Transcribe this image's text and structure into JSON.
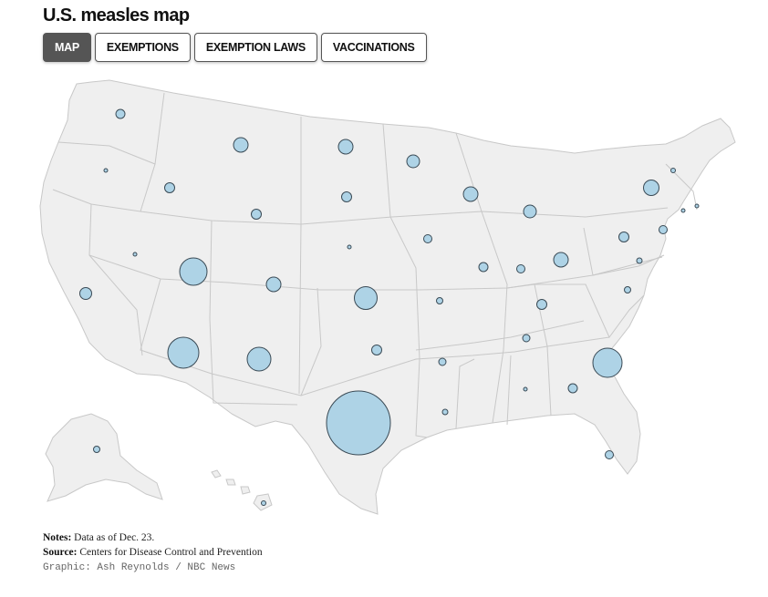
{
  "header": {
    "title": "U.S. measles map"
  },
  "tabs": [
    {
      "label": "MAP",
      "active": true
    },
    {
      "label": "EXEMPTIONS",
      "active": false
    },
    {
      "label": "EXEMPTION LAWS",
      "active": false
    },
    {
      "label": "VACCINATIONS",
      "active": false
    }
  ],
  "map": {
    "land_color": "#efefef",
    "border_color": "#c8c8c8",
    "bubble_fill": "#aed3e6",
    "bubble_stroke": "#3a4a55"
  },
  "footer": {
    "notes_label": "Notes:",
    "notes_text": "Data as of Dec. 23.",
    "source_label": "Source:",
    "source_text": "Centers for Disease Control and Prevention",
    "credit": "Graphic: Ash Reynolds / NBC News"
  }
}
